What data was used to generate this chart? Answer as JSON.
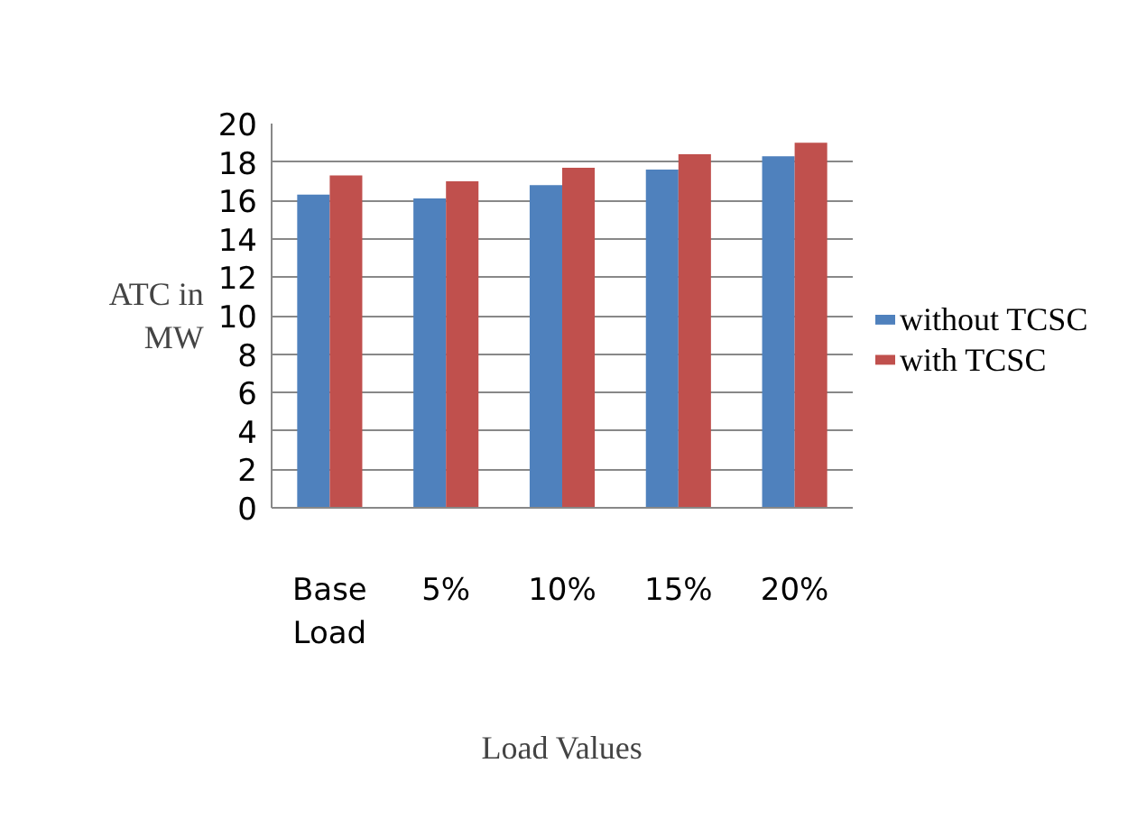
{
  "chart_data": {
    "type": "bar",
    "xlabel": "Load Values",
    "ylabel": "ATC in MW",
    "categories": [
      "Base Load",
      "5%",
      "10%",
      "15%",
      "20%"
    ],
    "series": [
      {
        "name": "without TCSC",
        "color": "#4f81bd",
        "values": [
          16.3,
          16.1,
          16.8,
          17.6,
          18.3
        ]
      },
      {
        "name": "with TCSC",
        "color": "#c0504d",
        "values": [
          17.3,
          17.0,
          17.7,
          18.4,
          19.0
        ]
      }
    ],
    "ylim": [
      0,
      20
    ],
    "yticks": [
      0,
      2,
      4,
      6,
      8,
      10,
      12,
      14,
      16,
      18,
      20
    ],
    "grid": "y",
    "legend": "right"
  }
}
